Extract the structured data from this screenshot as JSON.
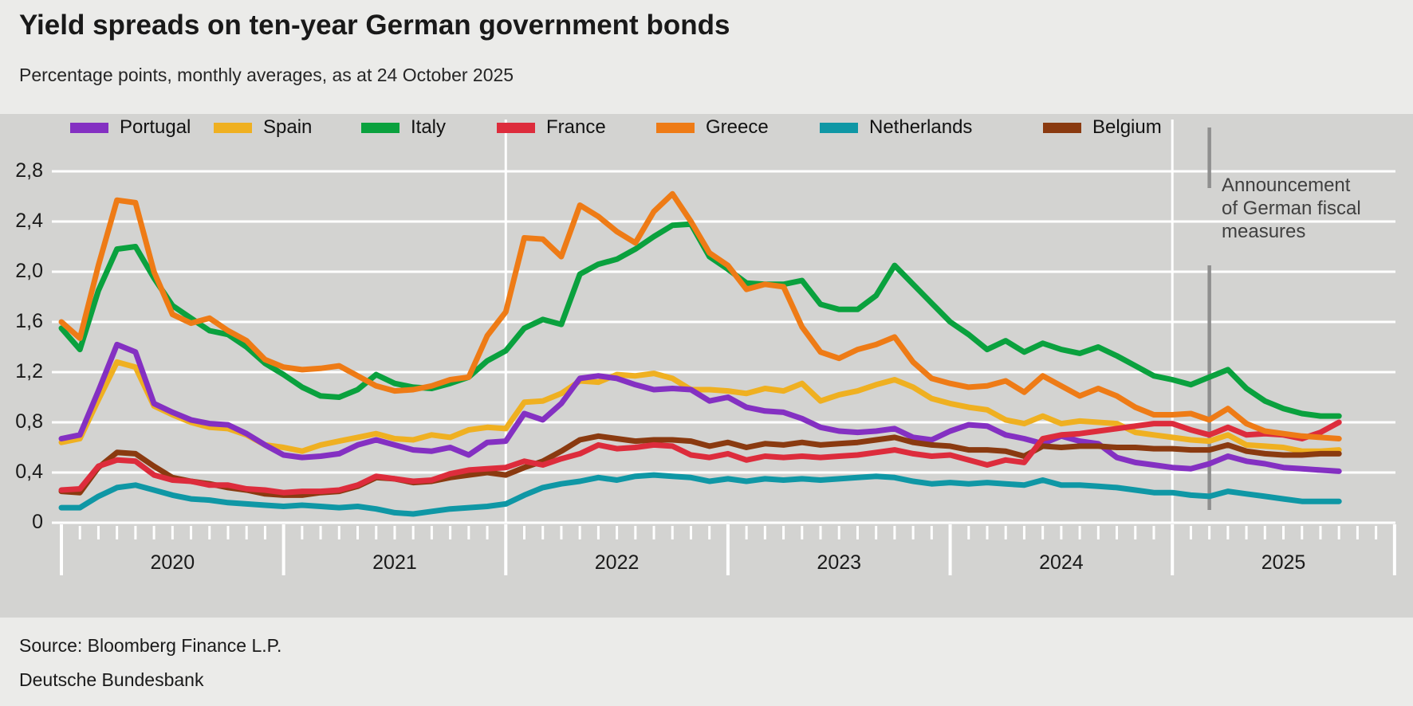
{
  "header": {
    "title": "Yield spreads on ten-year German government bonds",
    "subtitle": "Percentage points, monthly averages, as at 24 October 2025"
  },
  "axis": {
    "y_ticks": [
      "2,8",
      "2,4",
      "2,0",
      "1,6",
      "1,2",
      "0,8",
      "0,4",
      "0"
    ],
    "x_years": [
      "2020",
      "2021",
      "2022",
      "2023",
      "2024",
      "2025"
    ]
  },
  "annotation": {
    "lines": [
      "Announcement",
      "of German fiscal",
      "measures"
    ],
    "line_color": "#8f8f8f",
    "event_month": "2025-03"
  },
  "footer": {
    "source": "Source: Bloomberg Finance L.P.",
    "publisher": "Deutsche Bundesbank"
  },
  "chart_data": {
    "type": "line",
    "title": "Yield spreads on ten-year German government bonds",
    "ylabel": "Percentage points",
    "x_start": "2020-01",
    "x_end": "2025-10",
    "ylim": [
      0,
      2.8
    ],
    "ytick_step": 0.4,
    "grid": "horizontal white gridlines on grey panel",
    "legend_position": "top",
    "panel_break_months": [
      "2022-01",
      "2025-01"
    ],
    "series": [
      {
        "name": "Netherlands",
        "color": "#0f97a5",
        "values": [
          0.12,
          0.12,
          0.21,
          0.28,
          0.3,
          0.26,
          0.22,
          0.19,
          0.18,
          0.16,
          0.15,
          0.14,
          0.13,
          0.14,
          0.13,
          0.12,
          0.13,
          0.11,
          0.08,
          0.07,
          0.09,
          0.11,
          0.12,
          0.13,
          0.15,
          0.22,
          0.28,
          0.31,
          0.33,
          0.36,
          0.34,
          0.37,
          0.38,
          0.37,
          0.36,
          0.33,
          0.35,
          0.33,
          0.35,
          0.34,
          0.35,
          0.34,
          0.35,
          0.36,
          0.37,
          0.36,
          0.33,
          0.31,
          0.32,
          0.31,
          0.32,
          0.31,
          0.3,
          0.34,
          0.3,
          0.3,
          0.29,
          0.28,
          0.26,
          0.24,
          0.24,
          0.22,
          0.21,
          0.25,
          0.23,
          0.21,
          0.19,
          0.17,
          0.17,
          0.17
        ]
      },
      {
        "name": "Spain",
        "color": "#efb021",
        "values": [
          0.64,
          0.67,
          0.98,
          1.28,
          1.24,
          0.93,
          0.86,
          0.8,
          0.76,
          0.75,
          0.7,
          0.62,
          0.6,
          0.57,
          0.62,
          0.65,
          0.68,
          0.71,
          0.67,
          0.66,
          0.7,
          0.68,
          0.74,
          0.76,
          0.75,
          0.96,
          0.97,
          1.03,
          1.13,
          1.12,
          1.18,
          1.17,
          1.19,
          1.15,
          1.06,
          1.06,
          1.05,
          1.03,
          1.07,
          1.05,
          1.11,
          0.97,
          1.02,
          1.05,
          1.1,
          1.14,
          1.08,
          0.99,
          0.95,
          0.92,
          0.9,
          0.82,
          0.79,
          0.85,
          0.79,
          0.81,
          0.8,
          0.79,
          0.72,
          0.7,
          0.68,
          0.66,
          0.65,
          0.7,
          0.62,
          0.61,
          0.6,
          0.57,
          0.57,
          0.58
        ]
      },
      {
        "name": "Portugal",
        "color": "#8430c2",
        "values": [
          0.67,
          0.7,
          1.05,
          1.42,
          1.36,
          0.95,
          0.88,
          0.82,
          0.79,
          0.78,
          0.71,
          0.62,
          0.54,
          0.52,
          0.53,
          0.55,
          0.62,
          0.66,
          0.62,
          0.58,
          0.57,
          0.6,
          0.54,
          0.64,
          0.65,
          0.87,
          0.82,
          0.95,
          1.15,
          1.17,
          1.15,
          1.1,
          1.06,
          1.07,
          1.06,
          0.97,
          1.0,
          0.92,
          0.89,
          0.88,
          0.83,
          0.76,
          0.73,
          0.72,
          0.73,
          0.75,
          0.68,
          0.66,
          0.73,
          0.78,
          0.77,
          0.7,
          0.67,
          0.63,
          0.69,
          0.65,
          0.63,
          0.52,
          0.48,
          0.46,
          0.44,
          0.43,
          0.47,
          0.53,
          0.49,
          0.47,
          0.44,
          0.43,
          0.42,
          0.41
        ]
      },
      {
        "name": "Belgium",
        "color": "#8a3a10",
        "values": [
          0.25,
          0.24,
          0.44,
          0.56,
          0.55,
          0.45,
          0.36,
          0.33,
          0.31,
          0.28,
          0.26,
          0.23,
          0.22,
          0.22,
          0.24,
          0.25,
          0.29,
          0.36,
          0.35,
          0.32,
          0.33,
          0.36,
          0.38,
          0.4,
          0.38,
          0.44,
          0.49,
          0.57,
          0.66,
          0.69,
          0.67,
          0.65,
          0.66,
          0.66,
          0.65,
          0.61,
          0.64,
          0.6,
          0.63,
          0.62,
          0.64,
          0.62,
          0.63,
          0.64,
          0.66,
          0.68,
          0.64,
          0.62,
          0.61,
          0.58,
          0.58,
          0.57,
          0.53,
          0.61,
          0.6,
          0.61,
          0.61,
          0.6,
          0.6,
          0.59,
          0.59,
          0.58,
          0.58,
          0.62,
          0.57,
          0.55,
          0.54,
          0.54,
          0.55,
          0.55
        ]
      },
      {
        "name": "France",
        "color": "#dd2c3c",
        "values": [
          0.26,
          0.27,
          0.45,
          0.5,
          0.49,
          0.38,
          0.34,
          0.33,
          0.3,
          0.3,
          0.27,
          0.26,
          0.24,
          0.25,
          0.25,
          0.26,
          0.3,
          0.37,
          0.35,
          0.33,
          0.34,
          0.39,
          0.42,
          0.43,
          0.44,
          0.49,
          0.46,
          0.51,
          0.55,
          0.62,
          0.59,
          0.6,
          0.62,
          0.61,
          0.54,
          0.52,
          0.55,
          0.5,
          0.53,
          0.52,
          0.53,
          0.52,
          0.53,
          0.54,
          0.56,
          0.58,
          0.55,
          0.53,
          0.54,
          0.5,
          0.46,
          0.5,
          0.48,
          0.67,
          0.7,
          0.71,
          0.73,
          0.75,
          0.77,
          0.79,
          0.79,
          0.74,
          0.7,
          0.76,
          0.7,
          0.71,
          0.7,
          0.67,
          0.72,
          0.8
        ]
      },
      {
        "name": "Italy",
        "color": "#0aa13e",
        "values": [
          1.55,
          1.38,
          1.85,
          2.18,
          2.2,
          1.95,
          1.73,
          1.63,
          1.53,
          1.5,
          1.4,
          1.27,
          1.18,
          1.08,
          1.01,
          1.0,
          1.06,
          1.18,
          1.11,
          1.08,
          1.07,
          1.11,
          1.16,
          1.29,
          1.37,
          1.55,
          1.62,
          1.58,
          1.98,
          2.06,
          2.1,
          2.18,
          2.28,
          2.37,
          2.38,
          2.12,
          2.02,
          1.91,
          1.9,
          1.9,
          1.93,
          1.74,
          1.7,
          1.7,
          1.81,
          2.05,
          1.9,
          1.75,
          1.6,
          1.5,
          1.38,
          1.45,
          1.36,
          1.43,
          1.38,
          1.35,
          1.4,
          1.33,
          1.25,
          1.17,
          1.14,
          1.1,
          1.16,
          1.22,
          1.07,
          0.97,
          0.91,
          0.87,
          0.85,
          0.85
        ]
      },
      {
        "name": "Greece",
        "color": "#ee7b16",
        "values": [
          1.6,
          1.47,
          2.05,
          2.57,
          2.55,
          2.0,
          1.66,
          1.59,
          1.63,
          1.53,
          1.45,
          1.3,
          1.24,
          1.22,
          1.23,
          1.25,
          1.17,
          1.09,
          1.05,
          1.06,
          1.09,
          1.14,
          1.16,
          1.49,
          1.68,
          2.27,
          2.26,
          2.12,
          2.53,
          2.44,
          2.32,
          2.23,
          2.48,
          2.62,
          2.4,
          2.15,
          2.05,
          1.86,
          1.9,
          1.88,
          1.56,
          1.36,
          1.31,
          1.38,
          1.42,
          1.48,
          1.28,
          1.15,
          1.11,
          1.08,
          1.09,
          1.13,
          1.04,
          1.17,
          1.09,
          1.01,
          1.07,
          1.01,
          0.92,
          0.86,
          0.86,
          0.87,
          0.82,
          0.91,
          0.79,
          0.73,
          0.71,
          0.69,
          0.68,
          0.67
        ]
      }
    ],
    "legend_order": [
      "Portugal",
      "Spain",
      "Italy",
      "France",
      "Greece",
      "Netherlands",
      "Belgium"
    ]
  }
}
